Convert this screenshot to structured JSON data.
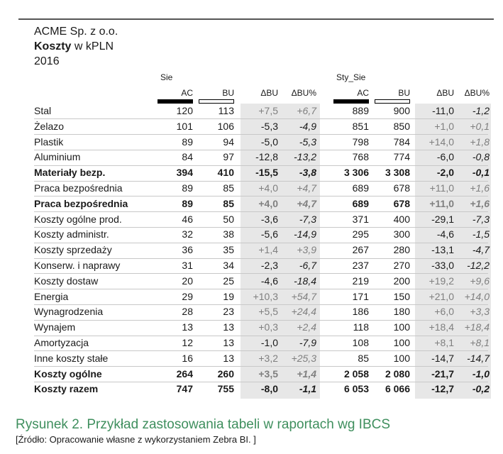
{
  "header": {
    "company": "ACME Sp. z o.o.",
    "title_bold": "Koszty",
    "title_rest": " w kPLN",
    "year": "2016"
  },
  "groups": {
    "left": "Sie",
    "right": "Sty_Sie"
  },
  "columns": [
    "AC",
    "BU",
    "ΔBU",
    "ΔBU%",
    "AC",
    "BU",
    "ΔBU",
    "ΔBU%"
  ],
  "rows": [
    {
      "label": "Stal",
      "bold": false,
      "v": [
        "120",
        "113",
        "+7,5",
        "+6,7",
        "889",
        "900",
        "-11,0",
        "-1,2"
      ]
    },
    {
      "label": "Żelazo",
      "bold": false,
      "v": [
        "101",
        "106",
        "-5,3",
        "-4,9",
        "851",
        "850",
        "+1,0",
        "+0,1"
      ]
    },
    {
      "label": "Plastik",
      "bold": false,
      "v": [
        "89",
        "94",
        "-5,0",
        "-5,3",
        "798",
        "784",
        "+14,0",
        "+1,8"
      ]
    },
    {
      "label": "Aluminium",
      "bold": false,
      "v": [
        "84",
        "97",
        "-12,8",
        "-13,2",
        "768",
        "774",
        "-6,0",
        "-0,8"
      ]
    },
    {
      "label": "Materiały bezp.",
      "bold": true,
      "v": [
        "394",
        "410",
        "-15,5",
        "-3,8",
        "3 306",
        "3 308",
        "-2,0",
        "-0,1"
      ]
    },
    {
      "label": "Praca bezpośrednia",
      "bold": false,
      "v": [
        "89",
        "85",
        "+4,0",
        "+4,7",
        "689",
        "678",
        "+11,0",
        "+1,6"
      ]
    },
    {
      "label": "Praca bezpośrednia",
      "bold": true,
      "v": [
        "89",
        "85",
        "+4,0",
        "+4,7",
        "689",
        "678",
        "+11,0",
        "+1,6"
      ]
    },
    {
      "label": "Koszty ogólne prod.",
      "bold": false,
      "v": [
        "46",
        "50",
        "-3,6",
        "-7,3",
        "371",
        "400",
        "-29,1",
        "-7,3"
      ]
    },
    {
      "label": "Koszty administr.",
      "bold": false,
      "v": [
        "32",
        "38",
        "-5,6",
        "-14,9",
        "295",
        "300",
        "-4,6",
        "-1,5"
      ]
    },
    {
      "label": "Koszty sprzedaży",
      "bold": false,
      "v": [
        "36",
        "35",
        "+1,4",
        "+3,9",
        "267",
        "280",
        "-13,1",
        "-4,7"
      ]
    },
    {
      "label": "Konserw. i naprawy",
      "bold": false,
      "v": [
        "31",
        "34",
        "-2,3",
        "-6,7",
        "237",
        "270",
        "-33,0",
        "-12,2"
      ]
    },
    {
      "label": "Koszty dostaw",
      "bold": false,
      "v": [
        "20",
        "25",
        "-4,6",
        "-18,4",
        "219",
        "200",
        "+19,2",
        "+9,6"
      ]
    },
    {
      "label": "Energia",
      "bold": false,
      "v": [
        "29",
        "19",
        "+10,3",
        "+54,7",
        "171",
        "150",
        "+21,0",
        "+14,0"
      ]
    },
    {
      "label": "Wynagrodzenia",
      "bold": false,
      "v": [
        "28",
        "23",
        "+5,5",
        "+24,4",
        "186",
        "180",
        "+6,0",
        "+3,3"
      ]
    },
    {
      "label": "Wynajem",
      "bold": false,
      "v": [
        "13",
        "13",
        "+0,3",
        "+2,4",
        "118",
        "100",
        "+18,4",
        "+18,4"
      ]
    },
    {
      "label": "Amortyzacja",
      "bold": false,
      "v": [
        "12",
        "13",
        "-1,0",
        "-7,9",
        "108",
        "100",
        "+8,1",
        "+8,1"
      ]
    },
    {
      "label": "Inne koszty stałe",
      "bold": false,
      "v": [
        "16",
        "13",
        "+3,2",
        "+25,3",
        "85",
        "100",
        "-14,7",
        "-14,7"
      ]
    },
    {
      "label": "Koszty ogólne",
      "bold": true,
      "v": [
        "264",
        "260",
        "+3,5",
        "+1,4",
        "2 058",
        "2 080",
        "-21,7",
        "-1,0"
      ]
    },
    {
      "label": "Koszty razem",
      "bold": true,
      "v": [
        "747",
        "755",
        "-8,0",
        "-1,1",
        "6 053",
        "6 066",
        "-12,7",
        "-0,2"
      ]
    }
  ],
  "caption": "Rysunek 2. Przykład zastosowania tabeli w raportach wg IBCS",
  "source": "[Źródło: Opracowanie własne z wykorzystaniem Zebra BI. ]",
  "colors": {
    "caption": "#3f8f5e",
    "shade": "#e7e7e7",
    "positive_variance": "#7f7f7f",
    "negative_variance": "#1a1a1a"
  }
}
